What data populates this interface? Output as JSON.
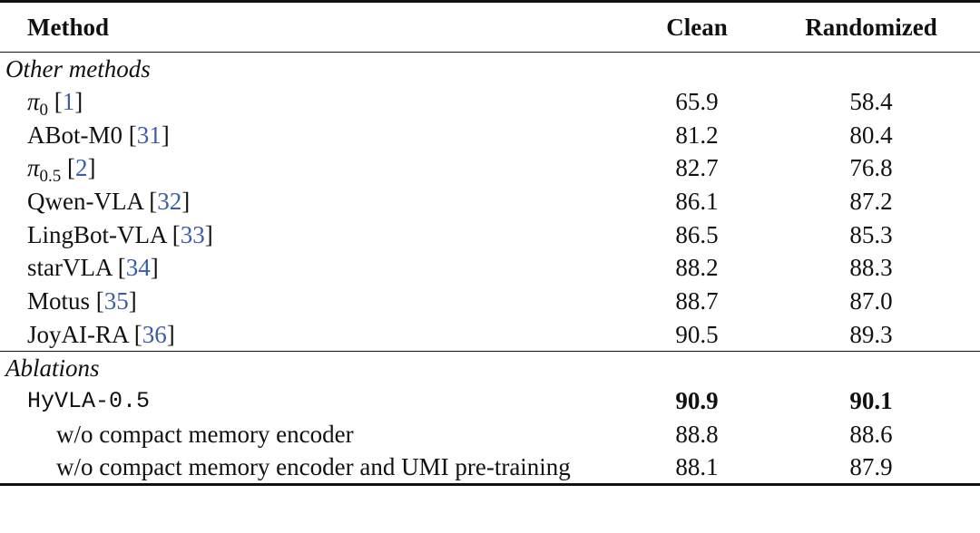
{
  "table": {
    "headers": {
      "method": "Method",
      "clean": "Clean",
      "randomized": "Randomized"
    },
    "sections": [
      {
        "label": "Other methods",
        "rows": [
          {
            "name": "π",
            "sub": "0",
            "cite": "1",
            "clean": "65.9",
            "randomized": "58.4"
          },
          {
            "name": "ABot-M0",
            "cite": "31",
            "clean": "81.2",
            "randomized": "80.4"
          },
          {
            "name": "π",
            "sub": "0.5",
            "cite": "2",
            "clean": "82.7",
            "randomized": "76.8"
          },
          {
            "name": "Qwen-VLA",
            "cite": "32",
            "clean": "86.1",
            "randomized": "87.2"
          },
          {
            "name": "LingBot-VLA",
            "cite": "33",
            "clean": "86.5",
            "randomized": "85.3"
          },
          {
            "name": "starVLA",
            "cite": "34",
            "clean": "88.2",
            "randomized": "88.3"
          },
          {
            "name": "Motus",
            "cite": "35",
            "clean": "88.7",
            "randomized": "87.0"
          },
          {
            "name": "JoyAI-RA",
            "cite": "36",
            "clean": "90.5",
            "randomized": "89.3"
          }
        ]
      },
      {
        "label": "Ablations",
        "rows": [
          {
            "name": "HyVLA-0.5",
            "clean": "90.9",
            "randomized": "90.1"
          },
          {
            "name": "w/o compact memory encoder",
            "clean": "88.8",
            "randomized": "88.6"
          },
          {
            "name": "w/o compact memory encoder and UMI pre-training",
            "clean": "88.1",
            "randomized": "87.9"
          }
        ]
      }
    ]
  }
}
